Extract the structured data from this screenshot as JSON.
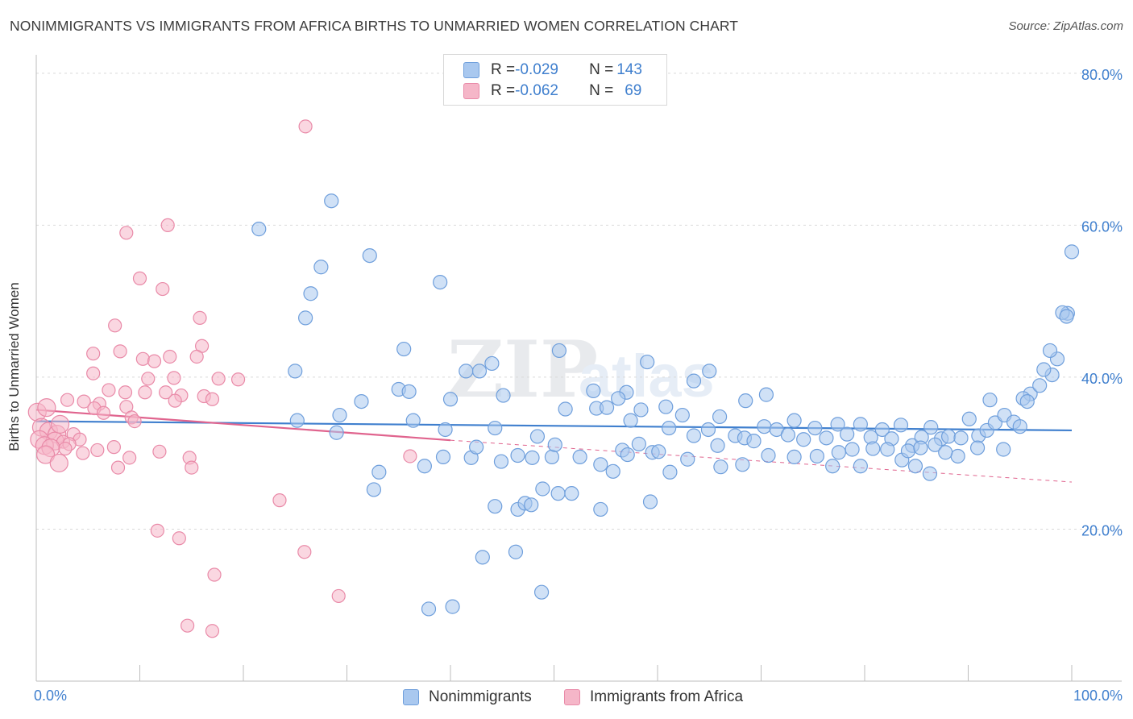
{
  "header": {
    "title": "NONIMMIGRANTS VS IMMIGRANTS FROM AFRICA BIRTHS TO UNMARRIED WOMEN CORRELATION CHART",
    "source": "Source: ZipAtlas.com"
  },
  "legend": {
    "series": [
      {
        "r_label": "R = ",
        "r_value": "-0.029",
        "n_label": "N = ",
        "n_value": "143"
      },
      {
        "r_label": "R = ",
        "r_value": "-0.062",
        "n_label": "N = ",
        "n_value": "69"
      }
    ]
  },
  "bottom_legend": {
    "nonimmigrants": "Nonimmigrants",
    "immigrants": "Immigrants from Africa"
  },
  "watermark": {
    "zip": "ZIP",
    "atlas": "atlas"
  },
  "colors": {
    "blue_fill": "#a9c8ef",
    "blue_stroke": "#6f9fdc",
    "blue_line": "#3f7fce",
    "pink_fill": "#f5b6c8",
    "pink_stroke": "#e98aa8",
    "pink_line": "#e0648e",
    "tick_label": "#3f7fce"
  },
  "chart_data": {
    "type": "scatter",
    "title": "NONIMMIGRANTS VS IMMIGRANTS FROM AFRICA BIRTHS TO UNMARRIED WOMEN CORRELATION CHART",
    "xlabel": "",
    "ylabel": "Births to Unmarried Women",
    "xlim": [
      0,
      100
    ],
    "ylim": [
      0,
      82
    ],
    "x_tick_labels": [
      "0.0%",
      "100.0%"
    ],
    "y_ticks": [
      20,
      40,
      60,
      80
    ],
    "y_tick_labels": [
      "20.0%",
      "40.0%",
      "60.0%",
      "80.0%"
    ],
    "grid": true,
    "legend_position": "top-center",
    "series": [
      {
        "name": "Nonimmigrants",
        "color": "#6f9fdc",
        "trend": {
          "x0": 0,
          "y0": 34.2,
          "x1": 100,
          "y1": 33.0
        },
        "points": [
          [
            21.5,
            59.5
          ],
          [
            28.5,
            63.2
          ],
          [
            27.5,
            54.5
          ],
          [
            32.2,
            56.0
          ],
          [
            26.5,
            51.0
          ],
          [
            26.0,
            47.8
          ],
          [
            39,
            52.5
          ],
          [
            35.5,
            43.7
          ],
          [
            50.5,
            43.5
          ],
          [
            44,
            41.8
          ],
          [
            59,
            42.0
          ],
          [
            63.5,
            39.5
          ],
          [
            65,
            40.8
          ],
          [
            25,
            40.8
          ],
          [
            41.5,
            40.8
          ],
          [
            42.8,
            40.8
          ],
          [
            35.0,
            38.4
          ],
          [
            36.0,
            38.1
          ],
          [
            45.1,
            37.6
          ],
          [
            53.8,
            38.2
          ],
          [
            57,
            38.0
          ],
          [
            40,
            37.1
          ],
          [
            31.4,
            36.8
          ],
          [
            51.1,
            35.8
          ],
          [
            54.1,
            35.9
          ],
          [
            55.1,
            36.0
          ],
          [
            56.2,
            37.2
          ],
          [
            58.4,
            35.7
          ],
          [
            60.8,
            36.1
          ],
          [
            62.4,
            35.0
          ],
          [
            66,
            34.8
          ],
          [
            68.5,
            36.9
          ],
          [
            70.5,
            37.7
          ],
          [
            73.2,
            34.3
          ],
          [
            25.2,
            34.3
          ],
          [
            29.3,
            35.0
          ],
          [
            36.4,
            34.3
          ],
          [
            39.5,
            33.1
          ],
          [
            44.3,
            33.3
          ],
          [
            48.4,
            32.2
          ],
          [
            57.4,
            34.3
          ],
          [
            61.1,
            33.3
          ],
          [
            63.5,
            32.3
          ],
          [
            64.9,
            33.1
          ],
          [
            65.8,
            31.0
          ],
          [
            67.5,
            32.3
          ],
          [
            68.4,
            32.0
          ],
          [
            69.3,
            31.6
          ],
          [
            70.3,
            33.5
          ],
          [
            71.5,
            33.1
          ],
          [
            72.6,
            32.4
          ],
          [
            74.1,
            31.8
          ],
          [
            75.2,
            33.3
          ],
          [
            76.3,
            32.0
          ],
          [
            77.4,
            33.8
          ],
          [
            78.3,
            32.5
          ],
          [
            79.6,
            33.8
          ],
          [
            80.6,
            32.1
          ],
          [
            81.7,
            33.1
          ],
          [
            82.6,
            31.9
          ],
          [
            83.5,
            33.7
          ],
          [
            84.6,
            31.0
          ],
          [
            85.5,
            32.1
          ],
          [
            86.4,
            33.4
          ],
          [
            87.4,
            31.9
          ],
          [
            88.1,
            32.2
          ],
          [
            89.3,
            32.0
          ],
          [
            90.1,
            34.5
          ],
          [
            91.0,
            32.3
          ],
          [
            91.8,
            33.0
          ],
          [
            92.6,
            34.0
          ],
          [
            93.5,
            35.0
          ],
          [
            94.4,
            34.1
          ],
          [
            95.0,
            33.5
          ],
          [
            29.0,
            32.7
          ],
          [
            39.3,
            29.5
          ],
          [
            42.0,
            29.4
          ],
          [
            44.9,
            28.9
          ],
          [
            47.9,
            29.4
          ],
          [
            49.8,
            29.5
          ],
          [
            52.5,
            29.5
          ],
          [
            54.5,
            28.5
          ],
          [
            56.6,
            30.4
          ],
          [
            57.1,
            29.8
          ],
          [
            58.2,
            31.2
          ],
          [
            59.5,
            30.1
          ],
          [
            60.1,
            30.2
          ],
          [
            62.9,
            29.2
          ],
          [
            66.1,
            28.2
          ],
          [
            68.2,
            28.5
          ],
          [
            70.7,
            29.7
          ],
          [
            73.2,
            29.5
          ],
          [
            75.4,
            29.6
          ],
          [
            76.9,
            28.3
          ],
          [
            77.5,
            30.1
          ],
          [
            78.8,
            30.5
          ],
          [
            79.6,
            28.3
          ],
          [
            80.8,
            30.6
          ],
          [
            82.2,
            30.5
          ],
          [
            83.6,
            29.1
          ],
          [
            84.2,
            30.3
          ],
          [
            85.4,
            30.7
          ],
          [
            86.8,
            31.1
          ],
          [
            89.0,
            29.6
          ],
          [
            93.4,
            30.5
          ],
          [
            37.5,
            28.3
          ],
          [
            42.5,
            30.8
          ],
          [
            46.5,
            29.7
          ],
          [
            50.1,
            31.1
          ],
          [
            55.7,
            27.6
          ],
          [
            61.2,
            27.5
          ],
          [
            33.1,
            27.5
          ],
          [
            32.6,
            25.2
          ],
          [
            48.9,
            25.3
          ],
          [
            50.4,
            24.7
          ],
          [
            44.3,
            23.0
          ],
          [
            46.5,
            22.6
          ],
          [
            47.2,
            23.4
          ],
          [
            47.8,
            23.2
          ],
          [
            51.7,
            24.7
          ],
          [
            54.5,
            22.6
          ],
          [
            59.3,
            23.6
          ],
          [
            86.3,
            27.3
          ],
          [
            84.9,
            28.3
          ],
          [
            87.8,
            30.1
          ],
          [
            90.9,
            30.7
          ],
          [
            96.0,
            37.8
          ],
          [
            96.9,
            38.9
          ],
          [
            98.1,
            40.3
          ],
          [
            98.6,
            42.4
          ],
          [
            99.6,
            48.4
          ],
          [
            100.0,
            56.5
          ],
          [
            92.1,
            37.0
          ],
          [
            95.3,
            37.2
          ],
          [
            95.7,
            36.8
          ],
          [
            97.9,
            43.5
          ],
          [
            99.1,
            48.5
          ],
          [
            97.3,
            41.0
          ],
          [
            99.5,
            48.0
          ],
          [
            43.1,
            16.3
          ],
          [
            46.3,
            17.0
          ],
          [
            37.9,
            9.5
          ],
          [
            40.2,
            9.8
          ],
          [
            48.8,
            11.7
          ]
        ]
      },
      {
        "name": "Immigrants from Africa",
        "color": "#e98aa8",
        "trend": {
          "x0": 0,
          "y0": 35.7,
          "x1": 40,
          "y1": 31.7
        },
        "trend_dashed": {
          "x0": 40,
          "y0": 31.7,
          "x1": 100,
          "y1": 26.2
        },
        "points": [
          [
            26.0,
            73.0
          ],
          [
            12.7,
            60.0
          ],
          [
            8.7,
            59.0
          ],
          [
            10.0,
            53.0
          ],
          [
            12.2,
            51.6
          ],
          [
            15.8,
            47.8
          ],
          [
            7.6,
            46.8
          ],
          [
            16.0,
            44.1
          ],
          [
            8.1,
            43.4
          ],
          [
            5.5,
            43.1
          ],
          [
            12.9,
            42.7
          ],
          [
            15.5,
            42.7
          ],
          [
            10.3,
            42.4
          ],
          [
            11.4,
            42.1
          ],
          [
            10.8,
            39.8
          ],
          [
            5.5,
            40.5
          ],
          [
            13.3,
            39.9
          ],
          [
            17.6,
            39.8
          ],
          [
            19.5,
            39.7
          ],
          [
            7.0,
            38.3
          ],
          [
            8.6,
            38.0
          ],
          [
            10.5,
            38.0
          ],
          [
            12.5,
            38.0
          ],
          [
            14.0,
            37.6
          ],
          [
            16.2,
            37.5
          ],
          [
            17.0,
            37.1
          ],
          [
            13.4,
            36.9
          ],
          [
            3.0,
            37.0
          ],
          [
            4.6,
            36.8
          ],
          [
            6.1,
            36.5
          ],
          [
            8.7,
            36.1
          ],
          [
            0.1,
            35.4
          ],
          [
            1.0,
            36.0
          ],
          [
            5.6,
            35.9
          ],
          [
            6.5,
            35.3
          ],
          [
            9.2,
            34.7
          ],
          [
            9.5,
            34.2
          ],
          [
            0.5,
            33.4
          ],
          [
            1.2,
            32.9
          ],
          [
            2.0,
            32.5
          ],
          [
            3.6,
            32.5
          ],
          [
            4.2,
            31.8
          ],
          [
            0.3,
            31.8
          ],
          [
            1.8,
            31.6
          ],
          [
            2.6,
            31.5
          ],
          [
            3.2,
            31.2
          ],
          [
            0.8,
            31.0
          ],
          [
            1.4,
            30.7
          ],
          [
            2.8,
            30.6
          ],
          [
            5.9,
            30.4
          ],
          [
            7.5,
            30.8
          ],
          [
            11.9,
            30.2
          ],
          [
            4.5,
            30.0
          ],
          [
            0.9,
            29.8
          ],
          [
            2.2,
            28.7
          ],
          [
            9.0,
            29.4
          ],
          [
            14.8,
            29.4
          ],
          [
            36.1,
            29.6
          ],
          [
            7.9,
            28.1
          ],
          [
            15.0,
            28.1
          ],
          [
            23.5,
            23.8
          ],
          [
            11.7,
            19.8
          ],
          [
            13.8,
            18.8
          ],
          [
            25.9,
            17.0
          ],
          [
            17.2,
            14.0
          ],
          [
            29.2,
            11.2
          ],
          [
            14.6,
            7.3
          ],
          [
            17.0,
            6.6
          ],
          [
            2.3,
            33.8
          ]
        ]
      }
    ]
  }
}
